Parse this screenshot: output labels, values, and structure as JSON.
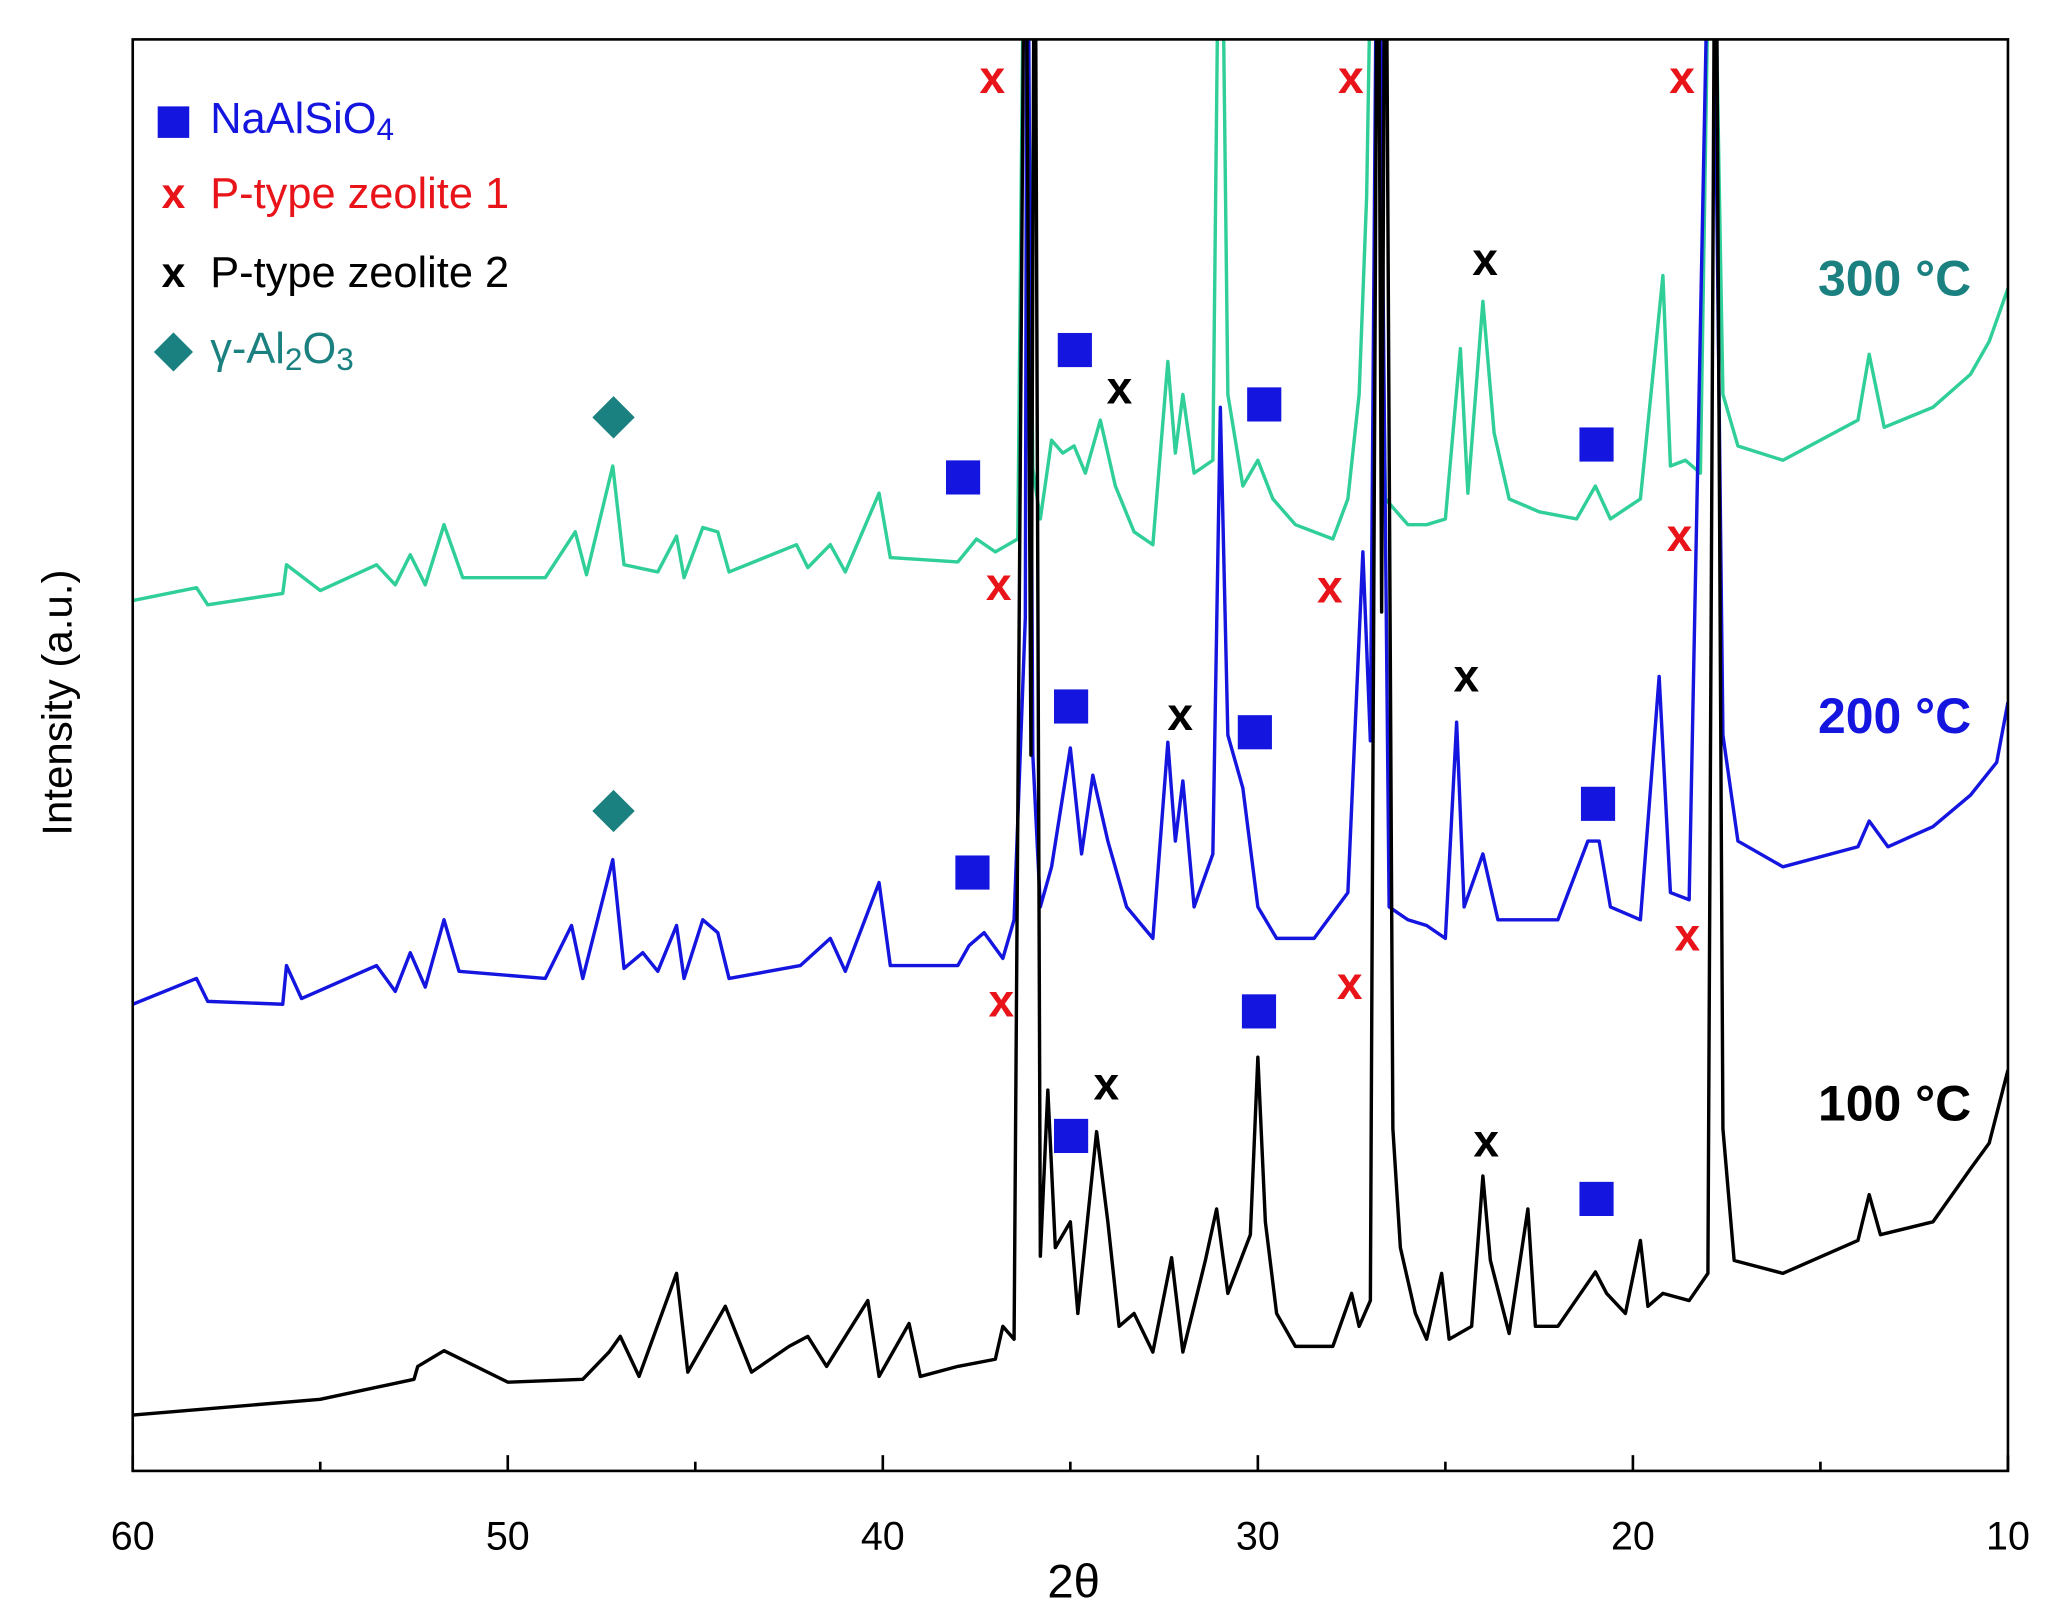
{
  "chart_data": {
    "type": "line",
    "xlabel": "2θ",
    "ylabel": "Intensity (a.u.)",
    "xlim": [
      60,
      10
    ],
    "xticks": [
      60,
      50,
      40,
      30,
      20,
      10
    ],
    "xminorticks": [
      55,
      45,
      35,
      25,
      15
    ],
    "ylim": [
      0,
      100
    ],
    "series": [
      {
        "name": "300 °C",
        "color": "#2fcf97",
        "label_color": "#1b8080",
        "x": [
          60,
          58.3,
          58,
          56,
          55.9,
          55,
          53.5,
          53,
          52.6,
          52.2,
          51.7,
          51.2,
          49,
          48.2,
          47.9,
          47.2,
          46.9,
          46,
          45.5,
          45.3,
          44.8,
          44.4,
          44.1,
          42.3,
          42,
          41.4,
          41,
          40.1,
          39.8,
          38,
          37.5,
          37,
          36.4,
          36.2,
          36,
          35.8,
          35.5,
          35.2,
          34.9,
          34.6,
          34.2,
          33.8,
          33.3,
          32.8,
          32.4,
          32.2,
          32,
          31.7,
          31.2,
          31,
          30.8,
          30.4,
          30,
          29.6,
          29,
          28,
          27.6,
          27.3,
          27.1,
          26.9,
          26.6,
          26,
          25.5,
          25,
          24.6,
          24.4,
          24,
          23.7,
          23.3,
          22.5,
          21.5,
          21,
          20.6,
          19.8,
          19.2,
          19,
          18.6,
          18.2,
          17.9,
          17.6,
          17.2,
          16,
          14,
          13.7,
          13.3,
          12,
          11,
          10.5,
          10
        ],
        "values": [
          60.8,
          61.7,
          60.5,
          61.3,
          63.3,
          61.5,
          63.3,
          61.9,
          64,
          61.9,
          66.1,
          62.4,
          62.4,
          65.6,
          62.6,
          70.2,
          63.3,
          62.8,
          65.3,
          62.4,
          65.9,
          65.6,
          62.8,
          64.7,
          63.1,
          64.7,
          62.8,
          68.3,
          63.8,
          63.5,
          65.1,
          64.2,
          65.1,
          120,
          70,
          66.5,
          72,
          71.1,
          71.6,
          69.7,
          73.4,
          68.8,
          65.6,
          64.7,
          77.5,
          71.1,
          75.2,
          69.7,
          70.6,
          120,
          75.2,
          68.8,
          70.6,
          67.9,
          66.1,
          65.1,
          67.9,
          75.2,
          89,
          120,
          67.9,
          66.1,
          66.1,
          66.5,
          78.4,
          68.3,
          81.7,
          72.5,
          67.9,
          67,
          66.5,
          68.8,
          66.5,
          67.9,
          83.5,
          70.2,
          70.6,
          69.7,
          120,
          75.2,
          71.6,
          70.6,
          73.4,
          78,
          72.9,
          74.3,
          76.6,
          78.9,
          82.6
        ]
      },
      {
        "name": "200 °C",
        "color": "#1515e0",
        "label_color": "#1515e0",
        "x": [
          60,
          58.3,
          58,
          56,
          55.9,
          55.5,
          53.5,
          53,
          52.6,
          52.2,
          51.7,
          51.3,
          49,
          48.3,
          48,
          47.2,
          46.9,
          46.4,
          46,
          45.5,
          45.3,
          44.8,
          44.4,
          44.1,
          42.2,
          41.4,
          41,
          40.1,
          39.8,
          38,
          37.7,
          37.3,
          36.8,
          36.5,
          36.2,
          36.15,
          36,
          35.8,
          35.5,
          35,
          34.7,
          34.4,
          34,
          33.5,
          32.8,
          32.4,
          32.2,
          32,
          31.7,
          31.2,
          31,
          30.8,
          30.4,
          30,
          29.5,
          28.5,
          27.6,
          27.2,
          27,
          26.8,
          26.5,
          26,
          25.5,
          25,
          24.7,
          24.5,
          24,
          23.6,
          22,
          21.2,
          20.9,
          20.6,
          19.8,
          19.3,
          19,
          18.5,
          17.9,
          17.6,
          17.2,
          16,
          14,
          13.7,
          13.2,
          12,
          11,
          10.3,
          10
        ],
        "values": [
          32.6,
          34.4,
          32.8,
          32.6,
          35.3,
          33.0,
          35.3,
          33.5,
          36.2,
          33.8,
          38.5,
          34.9,
          34.4,
          38.1,
          34.4,
          42.7,
          35.1,
          36.2,
          34.9,
          38.1,
          34.4,
          38.5,
          37.6,
          34.4,
          35.3,
          37.2,
          34.9,
          41.1,
          35.3,
          35.3,
          36.7,
          37.6,
          35.8,
          38.5,
          59.6,
          120,
          50,
          39.4,
          42.2,
          50.5,
          43.1,
          48.6,
          44,
          39.4,
          37.2,
          50.9,
          44,
          48.2,
          39.4,
          43.1,
          74.3,
          51.4,
          47.7,
          39.4,
          37.2,
          37.2,
          40.4,
          64.2,
          51,
          120,
          39.4,
          38.5,
          38.1,
          37.2,
          52.3,
          39.4,
          43.1,
          38.5,
          38.5,
          44,
          44,
          39.4,
          38.5,
          55.5,
          40.4,
          39.9,
          120,
          51.4,
          44,
          42.2,
          43.6,
          45.4,
          43.6,
          45,
          47.2,
          49.5,
          53.7
        ]
      },
      {
        "name": "100 °C",
        "color": "#000000",
        "label_color": "#000000",
        "x": [
          60,
          55,
          52.5,
          52.4,
          51.7,
          50,
          48,
          47.3,
          47,
          46.5,
          45.5,
          45.2,
          44.2,
          43.5,
          43,
          42.5,
          42,
          41.5,
          40.4,
          40.1,
          39.3,
          39,
          38,
          37,
          36.8,
          36.5,
          36.2,
          36.05,
          35.95,
          35.8,
          35.6,
          35.4,
          35,
          34.8,
          34.3,
          34,
          33.7,
          33.3,
          32.8,
          32.3,
          32,
          31.4,
          31.1,
          30.8,
          30.2,
          30,
          29.8,
          29.5,
          29,
          28,
          27.5,
          27.3,
          27,
          26.8,
          26.7,
          26.6,
          26.4,
          26.2,
          25.8,
          25.5,
          25.1,
          24.9,
          24.3,
          24,
          23.8,
          23.3,
          22.8,
          22.6,
          22,
          21,
          20.7,
          20.2,
          19.8,
          19.6,
          19.2,
          18.5,
          18,
          17.8,
          17.6,
          17.3,
          16,
          14,
          13.7,
          13.4,
          12,
          11,
          10.5,
          10
        ],
        "values": [
          3.9,
          5.0,
          6.4,
          7.3,
          8.4,
          6.2,
          6.4,
          8.3,
          9.4,
          6.6,
          13.8,
          6.9,
          11.5,
          6.9,
          7.8,
          8.7,
          9.4,
          7.3,
          11.9,
          6.6,
          10.3,
          6.6,
          7.3,
          7.8,
          10.1,
          9.2,
          120,
          50,
          120,
          15,
          26.6,
          15.6,
          17.4,
          11,
          23.7,
          17.4,
          10.1,
          11,
          8.3,
          14.9,
          8.3,
          14.7,
          18.3,
          12.4,
          16.5,
          28.9,
          17.4,
          11,
          8.7,
          8.7,
          12.4,
          10.1,
          11.9,
          120,
          60,
          120,
          23.9,
          15.6,
          11,
          9.2,
          13.8,
          9.2,
          10.1,
          20.6,
          14.7,
          9.6,
          18.3,
          10.1,
          10.1,
          13.9,
          12.4,
          11,
          16.1,
          11.5,
          12.4,
          11.9,
          13.8,
          120,
          23.9,
          14.7,
          13.8,
          16.1,
          19.3,
          16.5,
          17.4,
          21.1,
          22.9,
          28
        ]
      }
    ],
    "legend": [
      {
        "label": [
          {
            "text": "NaAlSiO"
          },
          {
            "text": "4",
            "sub": true
          }
        ],
        "color": "#1515e0",
        "shape": "square"
      },
      {
        "label": [
          {
            "text": "P-type zeolite 1"
          }
        ],
        "color": "#e8141a",
        "glyph": "x"
      },
      {
        "label": [
          {
            "text": "P-type zeolite 2"
          }
        ],
        "color": "#000000",
        "glyph": "x"
      },
      {
        "label": [
          {
            "text": "γ-Al"
          },
          {
            "text": "2",
            "sub": true
          },
          {
            "text": "O"
          },
          {
            "text": "3",
            "sub": true
          }
        ],
        "color": "#1b8080",
        "shape": "diamond"
      }
    ],
    "legend_position": "upper left",
    "annotations": [
      {
        "x": 37.08,
        "y": 97.1,
        "marker": 1
      },
      {
        "x": 27.52,
        "y": 97.1,
        "marker": 1
      },
      {
        "x": 18.69,
        "y": 97.1,
        "marker": 1
      },
      {
        "x": 36.91,
        "y": 61.7,
        "marker": 1
      },
      {
        "x": 28.08,
        "y": 61.5,
        "marker": 1
      },
      {
        "x": 18.76,
        "y": 65.1,
        "marker": 1
      },
      {
        "x": 36.84,
        "y": 32.6,
        "marker": 1
      },
      {
        "x": 27.55,
        "y": 33.8,
        "marker": 1
      },
      {
        "x": 18.55,
        "y": 37.2,
        "marker": 1
      },
      {
        "x": 23.94,
        "y": 84.4,
        "marker": 2
      },
      {
        "x": 33.69,
        "y": 75.4,
        "marker": 2
      },
      {
        "x": 32.07,
        "y": 52.6,
        "marker": 2
      },
      {
        "x": 24.44,
        "y": 55.3,
        "marker": 2
      },
      {
        "x": 34.04,
        "y": 26.8,
        "marker": 2
      },
      {
        "x": 23.91,
        "y": 22.8,
        "marker": 2
      },
      {
        "x": 34.88,
        "y": 78.3,
        "marker": 0
      },
      {
        "x": 29.83,
        "y": 74.5,
        "marker": 0
      },
      {
        "x": 37.86,
        "y": 69.4,
        "marker": 0
      },
      {
        "x": 20.97,
        "y": 71.7,
        "marker": 0
      },
      {
        "x": 34.98,
        "y": 53.4,
        "marker": 0
      },
      {
        "x": 30.08,
        "y": 51.6,
        "marker": 0
      },
      {
        "x": 37.61,
        "y": 41.8,
        "marker": 0
      },
      {
        "x": 20.93,
        "y": 46.6,
        "marker": 0
      },
      {
        "x": 29.97,
        "y": 32.1,
        "marker": 0
      },
      {
        "x": 34.98,
        "y": 23.4,
        "marker": 0
      },
      {
        "x": 20.97,
        "y": 19.0,
        "marker": 0
      },
      {
        "x": 47.18,
        "y": 73.6,
        "marker": 3
      },
      {
        "x": 47.18,
        "y": 46.1,
        "marker": 3
      }
    ]
  }
}
